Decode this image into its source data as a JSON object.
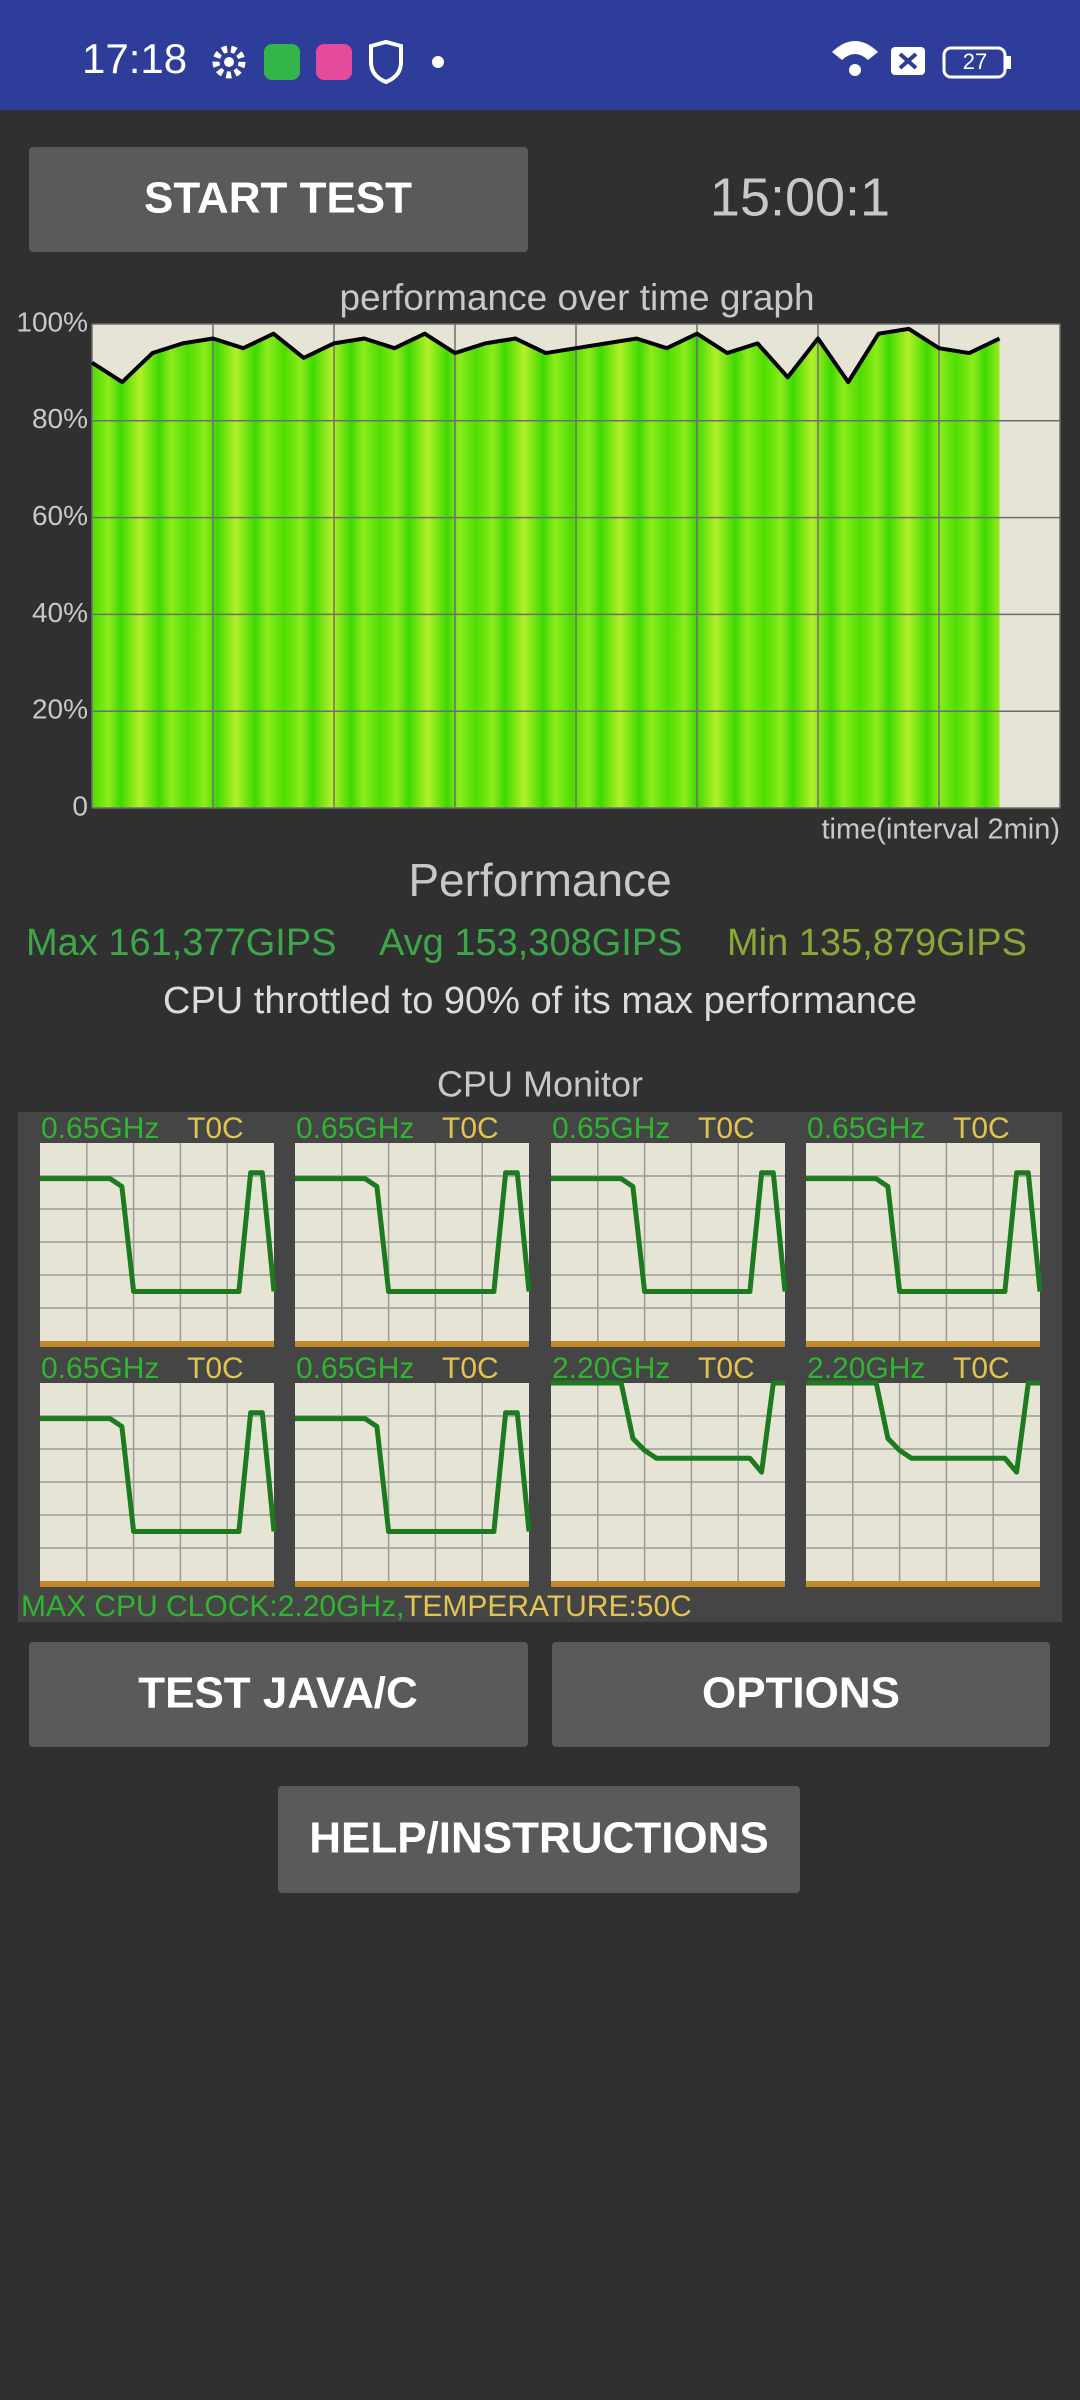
{
  "status_bar": {
    "time": "17:18",
    "battery": "27"
  },
  "buttons": {
    "start": "START TEST",
    "test": "TEST JAVA/C",
    "options": "OPTIONS",
    "help": "HELP/INSTRUCTIONS"
  },
  "timer": "15:00:1",
  "chart_data": {
    "type": "area",
    "title": "performance over time graph",
    "x_label": "time(interval 2min)",
    "x": [
      0,
      0.5,
      1,
      1.5,
      2,
      2.5,
      3,
      3.5,
      4,
      4.5,
      5,
      5.5,
      6,
      6.5,
      7,
      7.5,
      8,
      8.5,
      9,
      9.5,
      10,
      10.5,
      11,
      11.5,
      12,
      12.5,
      13,
      13.5,
      14,
      14.5,
      15
    ],
    "values": [
      92,
      88,
      94,
      96,
      97,
      95,
      98,
      93,
      96,
      97,
      95,
      98,
      94,
      96,
      97,
      94,
      95,
      96,
      97,
      95,
      98,
      94,
      96,
      89,
      97,
      88,
      98,
      99,
      95,
      94,
      97
    ],
    "line_color": "#000000",
    "xlim": [
      0,
      16
    ],
    "xticks": [
      0,
      2,
      4,
      6,
      8,
      10,
      12,
      14,
      16
    ],
    "ylim": [
      0,
      100
    ],
    "yticks": [
      0,
      {
        "value": 20,
        "label": "20%"
      },
      {
        "value": 40,
        "label": "40%"
      },
      {
        "value": 60,
        "label": "60%"
      },
      {
        "value": 80,
        "label": "80%"
      },
      {
        "value": 100,
        "label": "100%"
      }
    ],
    "grid": true
  },
  "performance": {
    "title": "Performance",
    "max": "Max 161,377GIPS",
    "avg": "Avg 153,308GIPS",
    "min": "Min 135,879GIPS",
    "throttle": "CPU throttled to 90% of its max performance"
  },
  "cpu_monitor": {
    "title": "CPU Monitor",
    "ylim": [
      0,
      100
    ],
    "cores": [
      {
        "freq": "0.65GHz",
        "temp": "T0C",
        "values": [
          82,
          82,
          82,
          82,
          82,
          82,
          82,
          78,
          25,
          25,
          25,
          25,
          25,
          25,
          25,
          25,
          25,
          25,
          85,
          85,
          25
        ]
      },
      {
        "freq": "0.65GHz",
        "temp": "T0C",
        "values": [
          82,
          82,
          82,
          82,
          82,
          82,
          82,
          78,
          25,
          25,
          25,
          25,
          25,
          25,
          25,
          25,
          25,
          25,
          85,
          85,
          25
        ]
      },
      {
        "freq": "0.65GHz",
        "temp": "T0C",
        "values": [
          82,
          82,
          82,
          82,
          82,
          82,
          82,
          78,
          25,
          25,
          25,
          25,
          25,
          25,
          25,
          25,
          25,
          25,
          85,
          85,
          25
        ]
      },
      {
        "freq": "0.65GHz",
        "temp": "T0C",
        "values": [
          82,
          82,
          82,
          82,
          82,
          82,
          82,
          78,
          25,
          25,
          25,
          25,
          25,
          25,
          25,
          25,
          25,
          25,
          85,
          85,
          25
        ]
      },
      {
        "freq": "0.65GHz",
        "temp": "T0C",
        "values": [
          82,
          82,
          82,
          82,
          82,
          82,
          82,
          78,
          25,
          25,
          25,
          25,
          25,
          25,
          25,
          25,
          25,
          25,
          85,
          85,
          25
        ]
      },
      {
        "freq": "0.65GHz",
        "temp": "T0C",
        "values": [
          82,
          82,
          82,
          82,
          82,
          82,
          82,
          78,
          25,
          25,
          25,
          25,
          25,
          25,
          25,
          25,
          25,
          25,
          85,
          85,
          25
        ]
      },
      {
        "freq": "2.20GHz",
        "temp": "T0C",
        "values": [
          100,
          100,
          100,
          100,
          100,
          100,
          100,
          72,
          66,
          62,
          62,
          62,
          62,
          62,
          62,
          62,
          62,
          62,
          55,
          100,
          100
        ]
      },
      {
        "freq": "2.20GHz",
        "temp": "T0C",
        "values": [
          100,
          100,
          100,
          100,
          100,
          100,
          100,
          72,
          66,
          62,
          62,
          62,
          62,
          62,
          62,
          62,
          62,
          62,
          55,
          100,
          100
        ]
      }
    ],
    "max_clock": "MAX CPU CLOCK:2.20GHz,",
    "temperature": "TEMPERATURE:50C"
  }
}
